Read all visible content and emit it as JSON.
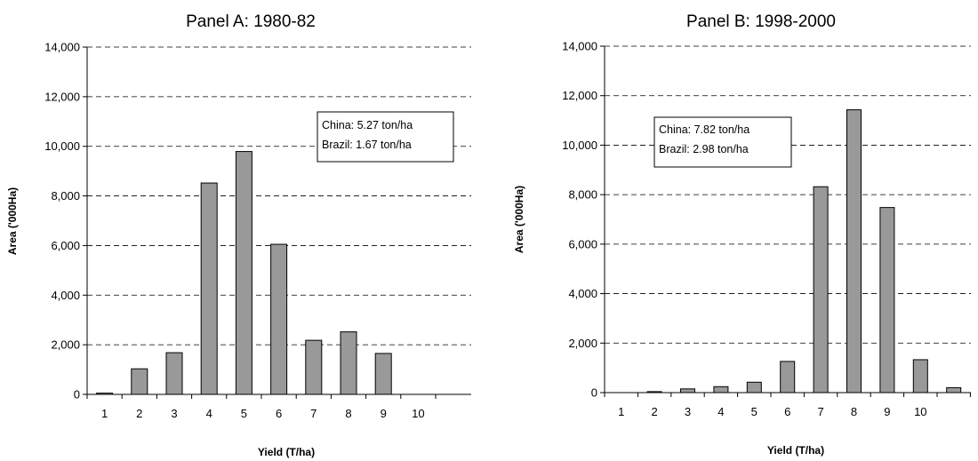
{
  "chart_data": [
    {
      "type": "bar",
      "title": "Panel A: 1980-82",
      "xlabel": "Yield (T/ha)",
      "ylabel": "Area ('000Ha)",
      "ylim": [
        0,
        14000
      ],
      "yticks": [
        "0",
        "2,000",
        "4,000",
        "6,000",
        "8,000",
        "10,000",
        "12,000",
        "14,000"
      ],
      "grid": "horizontal dashed",
      "categories": [
        "1",
        "2",
        "3",
        "4",
        "5",
        "6",
        "7",
        "8",
        "9",
        "10"
      ],
      "values": [
        50,
        1030,
        1680,
        8520,
        9790,
        6050,
        2180,
        2520,
        1650,
        0
      ],
      "annotation": [
        "China: 5.27 ton/ha",
        "Brazil: 1.67 ton/ha"
      ],
      "bar_color": "#999999"
    },
    {
      "type": "bar",
      "title": "Panel B: 1998-2000",
      "xlabel": "Yield (T/ha)",
      "ylabel": "Area ('000Ha)",
      "ylim": [
        0,
        14000
      ],
      "yticks": [
        "0",
        "2,000",
        "4,000",
        "6,000",
        "8,000",
        "10,000",
        "12,000",
        "14,000"
      ],
      "grid": "horizontal dashed",
      "categories": [
        "1",
        "2",
        "3",
        "4",
        "5",
        "6",
        "7",
        "8",
        "9",
        "10",
        ""
      ],
      "values": [
        0,
        40,
        150,
        240,
        420,
        1260,
        8320,
        11430,
        7480,
        1330,
        200
      ],
      "annotation": [
        "China: 7.82 ton/ha",
        "Brazil: 2.98 ton/ha"
      ],
      "bar_color": "#999999"
    }
  ]
}
